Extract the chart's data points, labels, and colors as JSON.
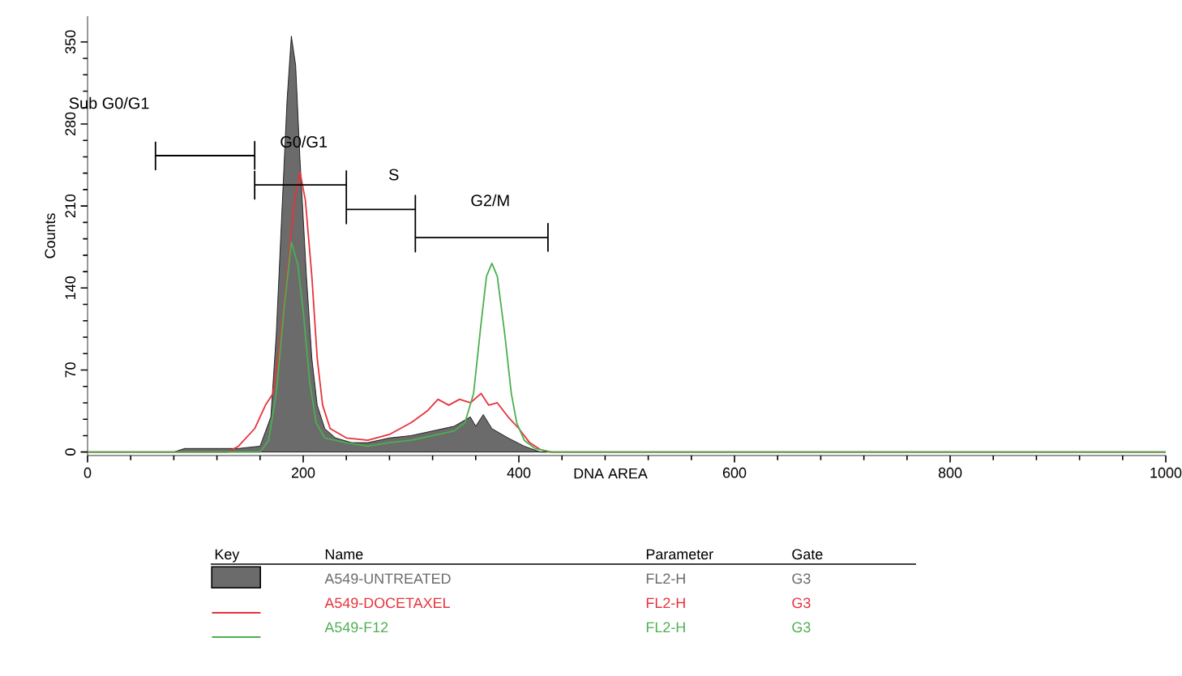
{
  "chart_data": {
    "type": "line",
    "xlabel": "DNA AREA",
    "ylabel": "Counts",
    "xlim": [
      0,
      1000
    ],
    "ylim": [
      -3,
      372
    ],
    "xticks": [
      0,
      200,
      400,
      600,
      800,
      1000
    ],
    "yticks": [
      0,
      70,
      140,
      210,
      280,
      350
    ],
    "legend": "bottom",
    "grid": false,
    "series": [
      {
        "name": "A549-UNTREATED",
        "type": "area",
        "color": "#6b6b6b",
        "x": [
          0,
          80,
          90,
          140,
          160,
          170,
          175,
          180,
          185,
          189,
          193,
          197,
          203,
          208,
          213,
          220,
          230,
          245,
          260,
          280,
          300,
          320,
          340,
          355,
          360,
          367,
          375,
          390,
          405,
          420,
          1000
        ],
        "values": [
          0,
          0,
          3,
          3,
          5,
          30,
          100,
          200,
          300,
          355,
          330,
          250,
          150,
          80,
          40,
          20,
          12,
          8,
          8,
          12,
          14,
          18,
          22,
          30,
          22,
          32,
          20,
          12,
          5,
          0,
          0
        ]
      },
      {
        "name": "A549-DOCETAXEL",
        "color": "#e8323c",
        "x": [
          0,
          130,
          140,
          155,
          165,
          172,
          178,
          185,
          192,
          197,
          202,
          208,
          213,
          218,
          225,
          240,
          260,
          280,
          300,
          315,
          325,
          335,
          345,
          355,
          365,
          372,
          380,
          390,
          400,
          410,
          420,
          430,
          1000
        ],
        "values": [
          0,
          0,
          5,
          20,
          40,
          50,
          90,
          150,
          215,
          239,
          215,
          150,
          80,
          40,
          20,
          12,
          10,
          15,
          25,
          35,
          45,
          40,
          45,
          42,
          50,
          40,
          42,
          30,
          20,
          8,
          2,
          0,
          0
        ]
      },
      {
        "name": "A549-F12",
        "color": "#4caf50",
        "x": [
          0,
          160,
          168,
          175,
          182,
          189,
          195,
          200,
          206,
          212,
          220,
          240,
          260,
          280,
          300,
          320,
          340,
          350,
          358,
          365,
          370,
          375,
          380,
          387,
          393,
          398,
          405,
          415,
          430,
          1000
        ],
        "values": [
          0,
          0,
          10,
          50,
          120,
          179,
          160,
          120,
          60,
          25,
          12,
          8,
          5,
          8,
          10,
          14,
          18,
          25,
          50,
          110,
          150,
          161,
          150,
          100,
          50,
          25,
          10,
          3,
          0,
          0
        ]
      },
      {
        "color": "#000000",
        "x": [
          63,
          63,
          63,
          155,
          155,
          155,
          null,
          155,
          155,
          155,
          240,
          240,
          240,
          null,
          240,
          240,
          240,
          304,
          304,
          304,
          null,
          304,
          304,
          304,
          427,
          427,
          427
        ],
        "values": [
          265,
          241,
          253,
          253,
          265,
          241,
          null,
          240,
          216,
          228,
          228,
          240,
          216,
          null,
          219,
          195,
          207,
          207,
          219,
          195,
          null,
          195,
          171,
          183,
          183,
          195,
          171
        ]
      }
    ],
    "annotations": [
      "Sub G0/G1",
      "G0/G1",
      "S",
      "G2/M",
      "Key",
      "Name",
      "Parameter",
      "Gate",
      "FL2-H",
      "G3",
      "FL2-H",
      "G3",
      "FL2-H",
      "G3"
    ]
  }
}
